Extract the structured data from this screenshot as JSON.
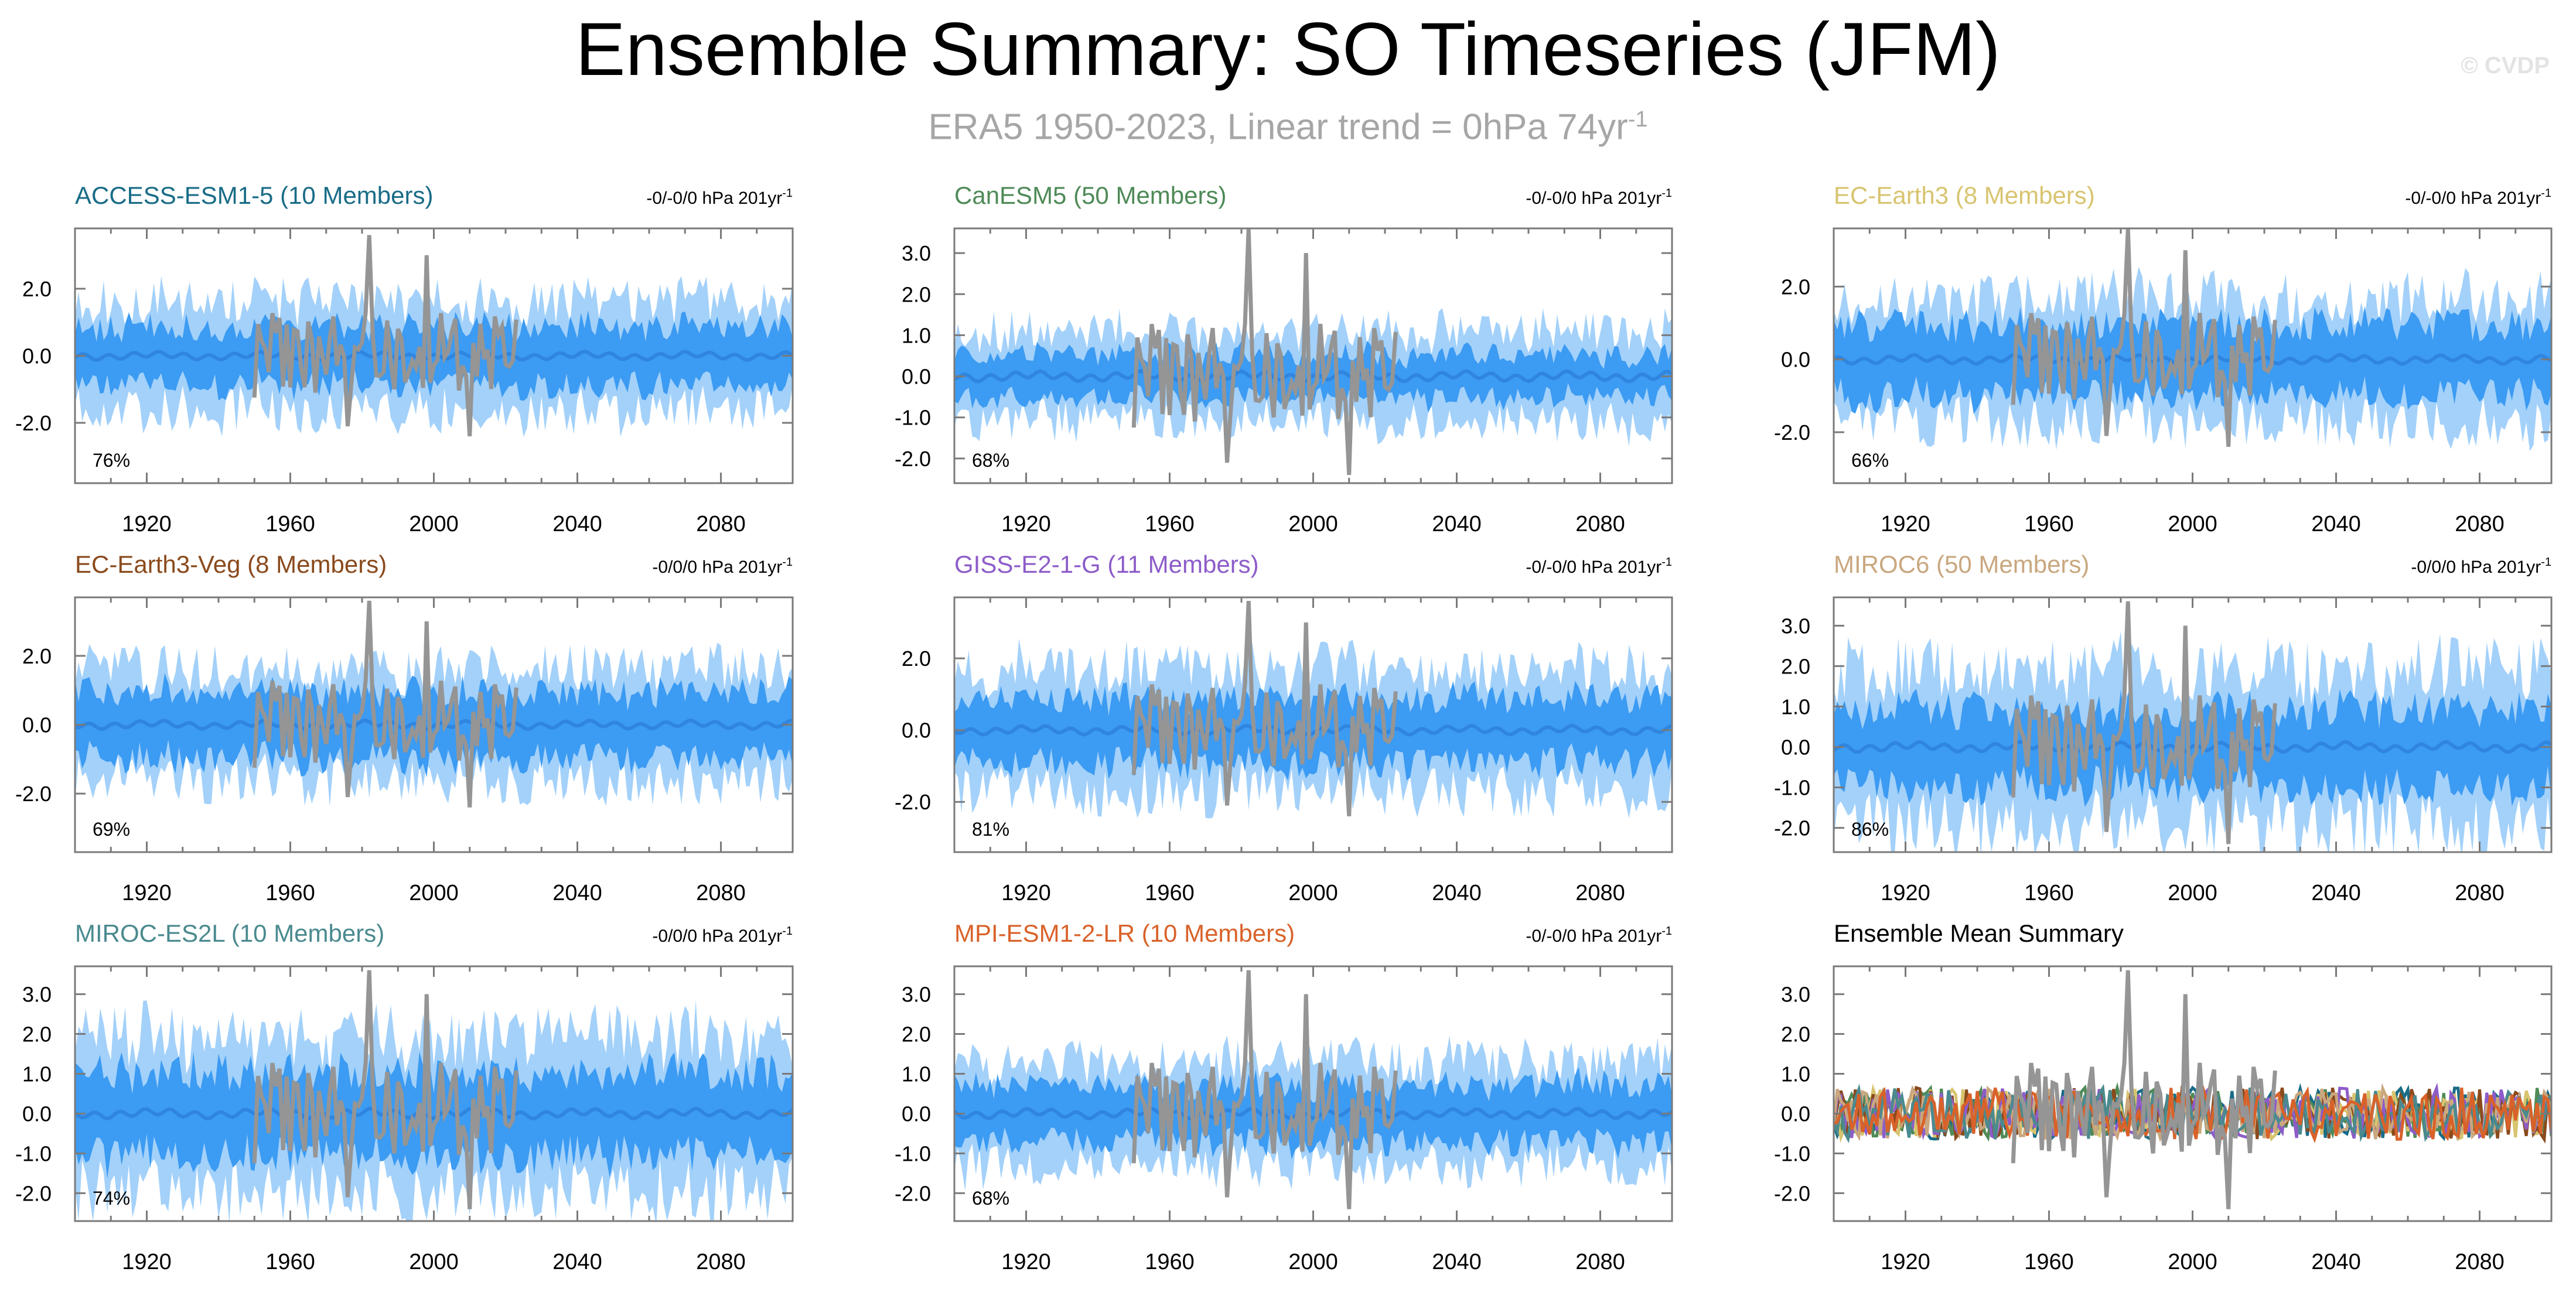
{
  "header": {
    "title": "Ensemble Summary: SO Timeseries (JFM)",
    "subtitle_main": "ERA5 1950-2023, Linear trend = 0hPa 74yr",
    "subtitle_sup": "-1",
    "watermark": "© CVDP"
  },
  "colors": {
    "outer_band": "#a3d1fa",
    "inner_band": "#3c9bf2",
    "ensemble_mean_line": "#2f85df",
    "observed_line": "#959595",
    "axis": "#7a7a7a"
  },
  "chart_data": [
    {
      "type": "area",
      "title": "ACCESS-ESM1-5 (10 Members)",
      "title_color": "#196c87",
      "trend_label": "-0/-0/0 hPa 201yr",
      "trend_sup": "-1",
      "percent": "76%",
      "xlim": [
        1900,
        2100
      ],
      "ylim": [
        -3.8,
        3.8
      ],
      "x_ticks": [
        "1920",
        "1960",
        "2000",
        "2040",
        "2080"
      ],
      "y_ticks": [
        "2.0",
        "0.0",
        "-2.0"
      ],
      "y_tick_values": [
        2.0,
        0.0,
        -2.0
      ],
      "outer_half": 1.6,
      "inner_half": 0.9,
      "seed": 11
    },
    {
      "type": "area",
      "title": "CanESM5 (50 Members)",
      "title_color": "#4f8a57",
      "trend_label": "-0/-0/0 hPa 201yr",
      "trend_sup": "-1",
      "percent": "68%",
      "xlim": [
        1900,
        2100
      ],
      "ylim": [
        -2.6,
        3.6
      ],
      "x_ticks": [
        "1920",
        "1960",
        "2000",
        "2040",
        "2080"
      ],
      "y_ticks": [
        "3.0",
        "2.0",
        "1.0",
        "0.0",
        "-1.0",
        "-2.0"
      ],
      "y_tick_values": [
        3.0,
        2.0,
        1.0,
        0.0,
        -1.0,
        -2.0
      ],
      "outer_half": 1.1,
      "inner_half": 0.55,
      "seed": 23
    },
    {
      "type": "area",
      "title": "EC-Earth3 (8 Members)",
      "title_color": "#d8c46f",
      "trend_label": "-0/-0/0 hPa 201yr",
      "trend_sup": "-1",
      "percent": "66%",
      "xlim": [
        1900,
        2100
      ],
      "ylim": [
        -3.4,
        3.6
      ],
      "x_ticks": [
        "1920",
        "1960",
        "2000",
        "2040",
        "2080"
      ],
      "y_ticks": [
        "2.0",
        "0.0",
        "-2.0"
      ],
      "y_tick_values": [
        2.0,
        0.0,
        -2.0
      ],
      "outer_half": 1.7,
      "inner_half": 1.0,
      "seed": 37
    },
    {
      "type": "area",
      "title": "EC-Earth3-Veg (8 Members)",
      "title_color": "#8a4a1c",
      "trend_label": "-0/0/0 hPa 201yr",
      "trend_sup": "-1",
      "percent": "69%",
      "xlim": [
        1900,
        2100
      ],
      "ylim": [
        -3.7,
        3.7
      ],
      "x_ticks": [
        "1920",
        "1960",
        "2000",
        "2040",
        "2080"
      ],
      "y_ticks": [
        "2.0",
        "0.0",
        "-2.0"
      ],
      "y_tick_values": [
        2.0,
        0.0,
        -2.0
      ],
      "outer_half": 1.6,
      "inner_half": 1.0,
      "seed": 41
    },
    {
      "type": "area",
      "title": "GISS-E2-1-G (11 Members)",
      "title_color": "#8d5cc9",
      "trend_label": "-0/-0/0 hPa 201yr",
      "trend_sup": "-1",
      "percent": "81%",
      "xlim": [
        1900,
        2100
      ],
      "ylim": [
        -3.4,
        3.7
      ],
      "x_ticks": [
        "1920",
        "1960",
        "2000",
        "2040",
        "2080"
      ],
      "y_ticks": [
        "2.0",
        "0.0",
        "-2.0"
      ],
      "y_tick_values": [
        2.0,
        0.0,
        -2.0
      ],
      "outer_half": 1.7,
      "inner_half": 0.95,
      "seed": 53
    },
    {
      "type": "area",
      "title": "MIROC6 (50 Members)",
      "title_color": "#c9a77f",
      "trend_label": "-0/0/0 hPa 201yr",
      "trend_sup": "-1",
      "percent": "86%",
      "xlim": [
        1900,
        2100
      ],
      "ylim": [
        -2.6,
        3.7
      ],
      "x_ticks": [
        "1920",
        "1960",
        "2000",
        "2040",
        "2080"
      ],
      "y_ticks": [
        "3.0",
        "2.0",
        "1.0",
        "0.0",
        "-1.0",
        "-2.0"
      ],
      "y_tick_values": [
        3.0,
        2.0,
        1.0,
        0.0,
        -1.0,
        -2.0
      ],
      "outer_half": 1.9,
      "inner_half": 1.0,
      "seed": 67
    },
    {
      "type": "area",
      "title": "MIROC-ES2L (10 Members)",
      "title_color": "#4a8a8f",
      "trend_label": "-0/0/0 hPa 201yr",
      "trend_sup": "-1",
      "percent": "74%",
      "xlim": [
        1900,
        2100
      ],
      "ylim": [
        -2.7,
        3.7
      ],
      "x_ticks": [
        "1920",
        "1960",
        "2000",
        "2040",
        "2080"
      ],
      "y_ticks": [
        "3.0",
        "2.0",
        "1.0",
        "0.0",
        "-1.0",
        "-2.0"
      ],
      "y_tick_values": [
        3.0,
        2.0,
        1.0,
        0.0,
        -1.0,
        -2.0
      ],
      "outer_half": 1.9,
      "inner_half": 1.1,
      "seed": 71
    },
    {
      "type": "area",
      "title": "MPI-ESM1-2-LR (10 Members)",
      "title_color": "#d9622a",
      "trend_label": "-0/-0/0 hPa 201yr",
      "trend_sup": "-1",
      "percent": "68%",
      "xlim": [
        1900,
        2100
      ],
      "ylim": [
        -2.7,
        3.7
      ],
      "x_ticks": [
        "1920",
        "1960",
        "2000",
        "2040",
        "2080"
      ],
      "y_ticks": [
        "3.0",
        "2.0",
        "1.0",
        "0.0",
        "-1.0",
        "-2.0"
      ],
      "y_tick_values": [
        3.0,
        2.0,
        1.0,
        0.0,
        -1.0,
        -2.0
      ],
      "outer_half": 1.3,
      "inner_half": 0.75,
      "seed": 83
    },
    {
      "type": "line",
      "title": "Ensemble Mean Summary",
      "title_color": "#000000",
      "xlim": [
        1900,
        2100
      ],
      "ylim": [
        -2.7,
        3.7
      ],
      "x_ticks": [
        "1920",
        "1960",
        "2000",
        "2040",
        "2080"
      ],
      "y_ticks": [
        "3.0",
        "2.0",
        "1.0",
        "0.0",
        "-1.0",
        "-2.0"
      ],
      "y_tick_values": [
        3.0,
        2.0,
        1.0,
        0.0,
        -1.0,
        -2.0
      ],
      "series_colors": [
        "#196c87",
        "#4f8a57",
        "#d8c46f",
        "#8a4a1c",
        "#8d5cc9",
        "#c9a77f",
        "#4a8a8f",
        "#d9622a"
      ],
      "seed": 97
    }
  ]
}
